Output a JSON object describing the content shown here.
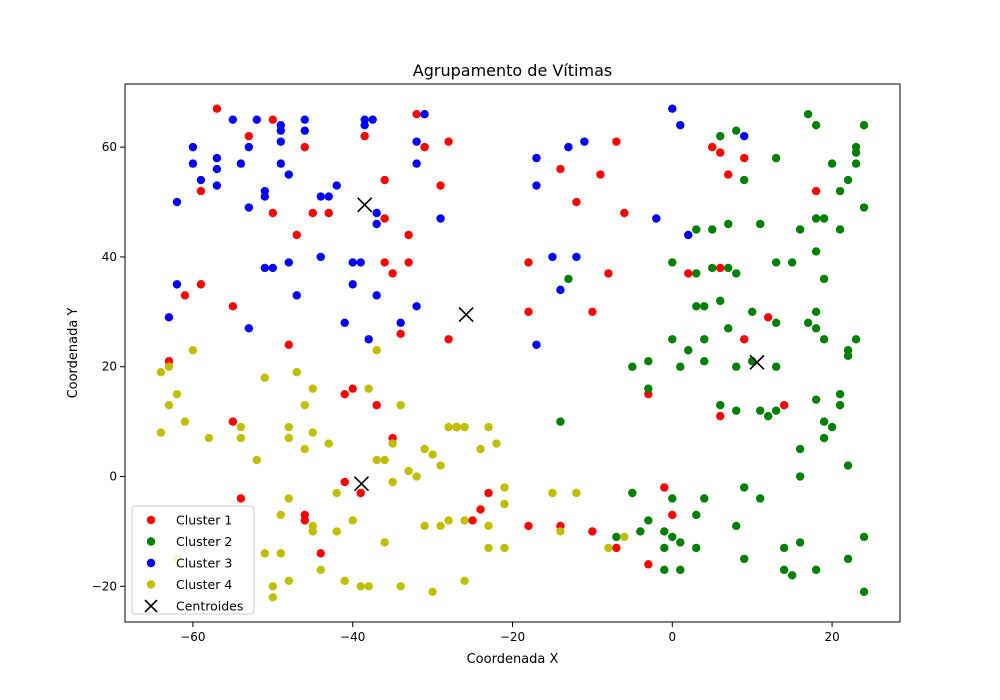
{
  "chart_data": {
    "type": "scatter",
    "title": "Agrupamento de Vítimas",
    "xlabel": "Coordenada X",
    "ylabel": "Coordenada Y",
    "xlim": [
      -68.5,
      28.5
    ],
    "ylim": [
      -26.5,
      71.5
    ],
    "xticks": [
      -60,
      -40,
      -20,
      0,
      20
    ],
    "yticks": [
      -20,
      0,
      20,
      40,
      60
    ],
    "xtick_labels": [
      "−60",
      "−40",
      "−20",
      "0",
      "20"
    ],
    "ytick_labels": [
      "−20",
      "0",
      "20",
      "40",
      "60"
    ],
    "grid": false,
    "legend_position": "lower-left",
    "series": [
      {
        "name": "Cluster 1",
        "color": "#ff0000",
        "marker": "circle",
        "points": [
          [
            -57,
            67
          ],
          [
            -50,
            65
          ],
          [
            -53,
            62
          ],
          [
            -46,
            60
          ],
          [
            -38.5,
            62
          ],
          [
            -32,
            66
          ],
          [
            -31,
            60
          ],
          [
            -28,
            61
          ],
          [
            -36,
            54
          ],
          [
            -29,
            53
          ],
          [
            -59,
            52
          ],
          [
            -50,
            48
          ],
          [
            -45,
            48
          ],
          [
            -43,
            48
          ],
          [
            -36,
            47
          ],
          [
            -33,
            44
          ],
          [
            -47,
            44
          ],
          [
            -36,
            39
          ],
          [
            -33,
            39
          ],
          [
            -35,
            37
          ],
          [
            -61,
            33
          ],
          [
            -59,
            35
          ],
          [
            -55,
            31
          ],
          [
            -34,
            26
          ],
          [
            -28,
            25
          ],
          [
            -48,
            24
          ],
          [
            -63,
            21
          ],
          [
            -40,
            16
          ],
          [
            -41,
            15
          ],
          [
            -37,
            13
          ],
          [
            -55,
            10
          ],
          [
            -35,
            7
          ],
          [
            -27,
            9
          ],
          [
            -41,
            -1
          ],
          [
            -39,
            -3
          ],
          [
            -54,
            -4
          ],
          [
            -46,
            -7
          ],
          [
            -46,
            -8
          ],
          [
            -44,
            -14
          ],
          [
            -23,
            -3
          ],
          [
            -24,
            -6
          ],
          [
            -25,
            -8
          ],
          [
            -18,
            -9
          ],
          [
            -14,
            -9
          ],
          [
            -10,
            -10
          ],
          [
            -7,
            -13
          ],
          [
            -3,
            -16
          ],
          [
            -1,
            -2
          ],
          [
            0,
            -7
          ],
          [
            -3,
            15
          ],
          [
            -14,
            56
          ],
          [
            -9,
            55
          ],
          [
            -12,
            50
          ],
          [
            -6,
            48
          ],
          [
            -7,
            61
          ],
          [
            -18,
            39
          ],
          [
            -18,
            30
          ],
          [
            -10,
            30
          ],
          [
            -8,
            37
          ],
          [
            5,
            60
          ],
          [
            6,
            59
          ],
          [
            9,
            58
          ],
          [
            7,
            55
          ],
          [
            2,
            37
          ],
          [
            6,
            38
          ],
          [
            9,
            25
          ],
          [
            12,
            29
          ],
          [
            6,
            11
          ],
          [
            14,
            13
          ],
          [
            18,
            52
          ]
        ]
      },
      {
        "name": "Cluster 2",
        "color": "#008000",
        "marker": "circle",
        "points": [
          [
            6,
            62
          ],
          [
            8,
            63
          ],
          [
            13,
            58
          ],
          [
            9,
            54
          ],
          [
            17,
            66
          ],
          [
            18,
            64
          ],
          [
            23,
            60
          ],
          [
            23,
            59
          ],
          [
            24,
            64
          ],
          [
            20,
            57
          ],
          [
            23,
            57
          ],
          [
            22,
            54
          ],
          [
            21,
            52
          ],
          [
            24,
            49
          ],
          [
            3,
            45
          ],
          [
            5,
            45
          ],
          [
            7,
            46
          ],
          [
            11,
            46
          ],
          [
            16,
            45
          ],
          [
            18,
            47
          ],
          [
            19,
            47
          ],
          [
            21,
            45
          ],
          [
            18,
            41
          ],
          [
            0,
            39
          ],
          [
            3,
            37
          ],
          [
            5,
            38
          ],
          [
            7,
            38
          ],
          [
            8,
            37
          ],
          [
            13,
            39
          ],
          [
            15,
            39
          ],
          [
            19,
            36
          ],
          [
            3,
            31
          ],
          [
            4,
            31
          ],
          [
            6,
            32
          ],
          [
            10,
            30
          ],
          [
            17,
            28
          ],
          [
            18,
            30
          ],
          [
            18,
            27
          ],
          [
            13,
            28
          ],
          [
            19,
            25
          ],
          [
            23,
            25
          ],
          [
            22,
            23
          ],
          [
            22,
            22
          ],
          [
            0,
            25
          ],
          [
            2,
            23
          ],
          [
            4,
            25
          ],
          [
            4,
            21
          ],
          [
            7,
            27
          ],
          [
            -5,
            20
          ],
          [
            -3,
            21
          ],
          [
            1,
            20
          ],
          [
            8,
            20
          ],
          [
            10,
            21
          ],
          [
            13,
            20
          ],
          [
            -3,
            16
          ],
          [
            6,
            13
          ],
          [
            8,
            12
          ],
          [
            11,
            12
          ],
          [
            12,
            11
          ],
          [
            13,
            12
          ],
          [
            18,
            14
          ],
          [
            19,
            10
          ],
          [
            20,
            9
          ],
          [
            21,
            15
          ],
          [
            21,
            13
          ],
          [
            19,
            7
          ],
          [
            -14,
            10
          ],
          [
            16,
            5
          ],
          [
            16,
            0
          ],
          [
            22,
            2
          ],
          [
            -13,
            36
          ],
          [
            -5,
            -3
          ],
          [
            0,
            -4
          ],
          [
            4,
            -4
          ],
          [
            3,
            -7
          ],
          [
            9,
            -2
          ],
          [
            11,
            -4
          ],
          [
            -7,
            -11
          ],
          [
            -3,
            -8
          ],
          [
            -4,
            -10
          ],
          [
            -1,
            -10
          ],
          [
            0,
            -11
          ],
          [
            -1,
            -13
          ],
          [
            1,
            -12
          ],
          [
            3,
            -13
          ],
          [
            8,
            -9
          ],
          [
            -1,
            -17
          ],
          [
            1,
            -17
          ],
          [
            9,
            -15
          ],
          [
            14,
            -13
          ],
          [
            16,
            -12
          ],
          [
            14,
            -17
          ],
          [
            15,
            -18
          ],
          [
            18,
            -17
          ],
          [
            22,
            -15
          ],
          [
            24,
            -11
          ],
          [
            24,
            -21
          ]
        ]
      },
      {
        "name": "Cluster 3",
        "color": "#0000ff",
        "marker": "circle",
        "points": [
          [
            -60,
            60
          ],
          [
            -60,
            57
          ],
          [
            -59,
            54
          ],
          [
            -57,
            58
          ],
          [
            -57,
            56
          ],
          [
            -57,
            53
          ],
          [
            -55,
            65
          ],
          [
            -52,
            65
          ],
          [
            -53,
            60
          ],
          [
            -54,
            57
          ],
          [
            -49,
            64
          ],
          [
            -49,
            63
          ],
          [
            -49,
            61
          ],
          [
            -46,
            65
          ],
          [
            -46,
            63
          ],
          [
            -38.5,
            65
          ],
          [
            -38.5,
            64
          ],
          [
            -37.5,
            65
          ],
          [
            -31,
            66
          ],
          [
            -32,
            61
          ],
          [
            -32,
            57
          ],
          [
            -62,
            50
          ],
          [
            -53,
            49
          ],
          [
            -51,
            52
          ],
          [
            -51,
            51
          ],
          [
            -48,
            55
          ],
          [
            -49,
            57
          ],
          [
            -44,
            51
          ],
          [
            -43,
            51
          ],
          [
            -42,
            53
          ],
          [
            -37,
            48
          ],
          [
            -37,
            46
          ],
          [
            -29,
            47
          ],
          [
            -51,
            38
          ],
          [
            -50,
            38
          ],
          [
            -48,
            39
          ],
          [
            -44,
            40
          ],
          [
            -40,
            39
          ],
          [
            -39,
            39
          ],
          [
            -62,
            35
          ],
          [
            -63,
            29
          ],
          [
            -53,
            27
          ],
          [
            -47,
            33
          ],
          [
            -40,
            35
          ],
          [
            -37,
            33
          ],
          [
            -41,
            28
          ],
          [
            -38,
            25
          ],
          [
            -34,
            28
          ],
          [
            -32,
            31
          ],
          [
            -17,
            58
          ],
          [
            -13,
            60
          ],
          [
            -11,
            61
          ],
          [
            -17,
            53
          ],
          [
            -15,
            40
          ],
          [
            -12,
            40
          ],
          [
            -14,
            34
          ],
          [
            -17,
            24
          ],
          [
            0,
            67
          ],
          [
            1,
            64
          ],
          [
            9,
            62
          ],
          [
            -2,
            47
          ],
          [
            2,
            44
          ]
        ]
      },
      {
        "name": "Cluster 4",
        "color": "#bfbf00",
        "marker": "circle",
        "points": [
          [
            -60,
            23
          ],
          [
            -63,
            20
          ],
          [
            -64,
            19
          ],
          [
            -62,
            15
          ],
          [
            -63,
            13
          ],
          [
            -61,
            10
          ],
          [
            -64,
            8
          ],
          [
            -58,
            7
          ],
          [
            -54,
            9
          ],
          [
            -54,
            7
          ],
          [
            -51,
            18
          ],
          [
            -52,
            3
          ],
          [
            -48,
            9
          ],
          [
            -48,
            7
          ],
          [
            -47,
            19
          ],
          [
            -46,
            13
          ],
          [
            -45,
            16
          ],
          [
            -45,
            8
          ],
          [
            -46,
            5
          ],
          [
            -43,
            6
          ],
          [
            -38,
            16
          ],
          [
            -37,
            23
          ],
          [
            -34,
            13
          ],
          [
            -37,
            3
          ],
          [
            -36,
            3
          ],
          [
            -35,
            6
          ],
          [
            -35,
            -1
          ],
          [
            -33,
            1
          ],
          [
            -32,
            0
          ],
          [
            -31,
            5
          ],
          [
            -30,
            4
          ],
          [
            -29,
            2
          ],
          [
            -28,
            9
          ],
          [
            -27,
            9
          ],
          [
            -26,
            9
          ],
          [
            -23,
            9
          ],
          [
            -24,
            5
          ],
          [
            -22,
            6
          ],
          [
            -21,
            -2
          ],
          [
            -21,
            -5
          ],
          [
            -49,
            -7
          ],
          [
            -48,
            -4
          ],
          [
            -51,
            -14
          ],
          [
            -49,
            -14
          ],
          [
            -45,
            -9
          ],
          [
            -45,
            -10
          ],
          [
            -42,
            -3
          ],
          [
            -42,
            -10
          ],
          [
            -40,
            -8
          ],
          [
            -36,
            -12
          ],
          [
            -28,
            -8
          ],
          [
            -26,
            -8
          ],
          [
            -23,
            -9
          ],
          [
            -31,
            -9
          ],
          [
            -29,
            -9
          ],
          [
            -23,
            -13
          ],
          [
            -21,
            -13
          ],
          [
            -15,
            -3
          ],
          [
            -12,
            -3
          ],
          [
            -14,
            -10
          ],
          [
            -6,
            -11
          ],
          [
            -8,
            -13
          ],
          [
            -62,
            -15
          ],
          [
            -50,
            -20
          ],
          [
            -50,
            -22
          ],
          [
            -48,
            -19
          ],
          [
            -44,
            -17
          ],
          [
            -41,
            -19
          ],
          [
            -39,
            -20
          ],
          [
            -38,
            -20
          ],
          [
            -34,
            -20
          ],
          [
            -30,
            -21
          ],
          [
            -26,
            -19
          ]
        ]
      },
      {
        "name": "Centroides",
        "color": "#000000",
        "marker": "x",
        "points": [
          [
            -38.5,
            49.5
          ],
          [
            -25.8,
            29.5
          ],
          [
            10.6,
            20.8
          ],
          [
            -38.9,
            -1.3
          ]
        ]
      }
    ]
  }
}
